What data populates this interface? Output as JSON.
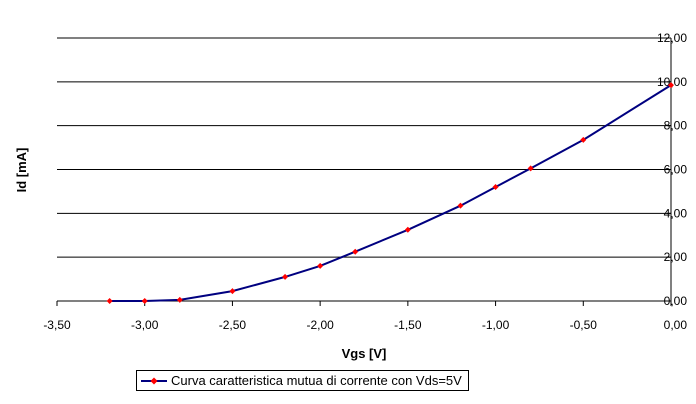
{
  "chart_data": {
    "type": "line",
    "xlabel": "Vgs [V]",
    "ylabel": "Id [mA]",
    "xlim": [
      -3.5,
      0.0
    ],
    "ylim": [
      0.0,
      12.0
    ],
    "x_ticks": [
      "-3,50",
      "-3,00",
      "-2,50",
      "-2,00",
      "-1,50",
      "-1,00",
      "-0,50",
      "0,00"
    ],
    "y_ticks": [
      "0,00",
      "2,00",
      "4,00",
      "6,00",
      "8,00",
      "10,00",
      "12,00"
    ],
    "grid": "horizontal",
    "legend_position": "bottom",
    "line_color": "#000080",
    "marker_color": "#ff0000",
    "series": [
      {
        "name": "Curva caratteristica mutua di corrente con Vds=5V",
        "x": [
          -3.2,
          -3.0,
          -2.8,
          -2.5,
          -2.2,
          -2.0,
          -1.8,
          -1.5,
          -1.2,
          -1.0,
          -0.8,
          -0.5,
          0.0
        ],
        "y": [
          0.0,
          0.0,
          0.05,
          0.45,
          1.1,
          1.6,
          2.25,
          3.25,
          4.35,
          5.2,
          6.05,
          7.35,
          9.85
        ]
      }
    ]
  }
}
